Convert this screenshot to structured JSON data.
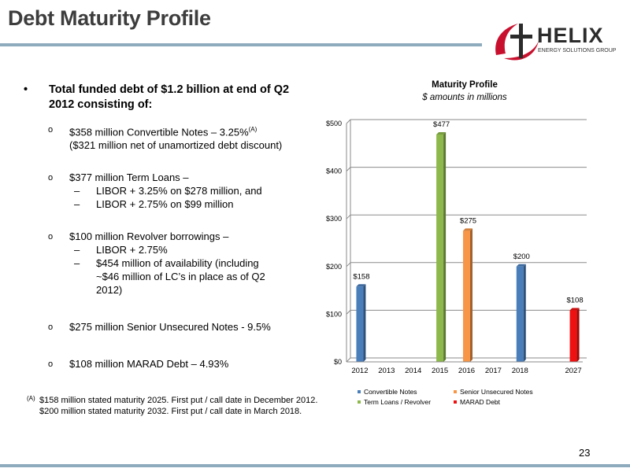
{
  "slide": {
    "title": "Debt Maturity Profile",
    "page_number": "23"
  },
  "logo": {
    "name": "HELIX",
    "tagline": "ENERGY SOLUTIONS GROUP"
  },
  "bullets": {
    "main": "Total funded debt of $1.2 billion at end of Q2 2012 consisting of:",
    "convertible": {
      "line1": "$358 million Convertible Notes – 3.25%",
      "sup": "(A)",
      "line2": "($321 million net of unamortized debt discount)"
    },
    "term_loans": {
      "line": "$377 million Term Loans –",
      "subs": [
        "LIBOR + 3.25% on $278 million, and",
        "LIBOR + 2.75% on $99 million"
      ]
    },
    "revolver": {
      "line": "$100 million Revolver borrowings –",
      "subs": [
        "LIBOR + 2.75%",
        "$454 million of availability (including ~$46 million of LC’s in place as of Q2 2012)"
      ]
    },
    "senior": "$275 million Senior Unsecured Notes - 9.5%",
    "marad": "$108 million MARAD Debt – 4.93%"
  },
  "footnote": {
    "mark": "(A)",
    "line1": "$158 million stated maturity 2025. First put / call date in December 2012.",
    "line2": "$200 million stated maturity 2032. First put / call date in March 2018."
  },
  "chart_data": {
    "type": "bar",
    "title": "Maturity Profile",
    "subtitle": "$ amounts in millions",
    "xlabel": "",
    "ylabel": "",
    "categories": [
      "2012",
      "2013",
      "2014",
      "2015",
      "2016",
      "2017",
      "2018",
      "",
      "2027"
    ],
    "ylim": [
      0,
      500
    ],
    "yticks": [
      0,
      100,
      200,
      300,
      400,
      500
    ],
    "ytick_labels": [
      "$0",
      "$100",
      "$200",
      "$300",
      "$400",
      "$500"
    ],
    "grid": true,
    "legend_position": "bottom",
    "series": [
      {
        "name": "Convertible Notes",
        "color": "#4a7ebb",
        "values": [
          158,
          null,
          null,
          null,
          null,
          null,
          200,
          null,
          null
        ]
      },
      {
        "name": "Term Loans / Revolver",
        "color": "#8db84b",
        "values": [
          null,
          null,
          null,
          477,
          null,
          null,
          null,
          null,
          null
        ]
      },
      {
        "name": "Senior Unsecured Notes",
        "color": "#f79646",
        "values": [
          null,
          null,
          null,
          null,
          275,
          null,
          null,
          null,
          null
        ]
      },
      {
        "name": "MARAD Debt",
        "color": "#ee1111",
        "values": [
          null,
          null,
          null,
          null,
          null,
          null,
          null,
          null,
          108
        ]
      }
    ],
    "data_labels": [
      {
        "category": "2012",
        "series": "Convertible Notes",
        "text": "$158"
      },
      {
        "category": "2015",
        "series": "Term Loans / Revolver",
        "text": "$477"
      },
      {
        "category": "2016",
        "series": "Senior Unsecured Notes",
        "text": "$275"
      },
      {
        "category": "2018",
        "series": "Convertible Notes",
        "text": "$200"
      },
      {
        "category": "2027",
        "series": "MARAD Debt",
        "text": "$108"
      }
    ],
    "legend_order": [
      "Convertible Notes",
      "Senior Unsecured Notes",
      "Term Loans / Revolver",
      "MARAD Debt"
    ]
  }
}
